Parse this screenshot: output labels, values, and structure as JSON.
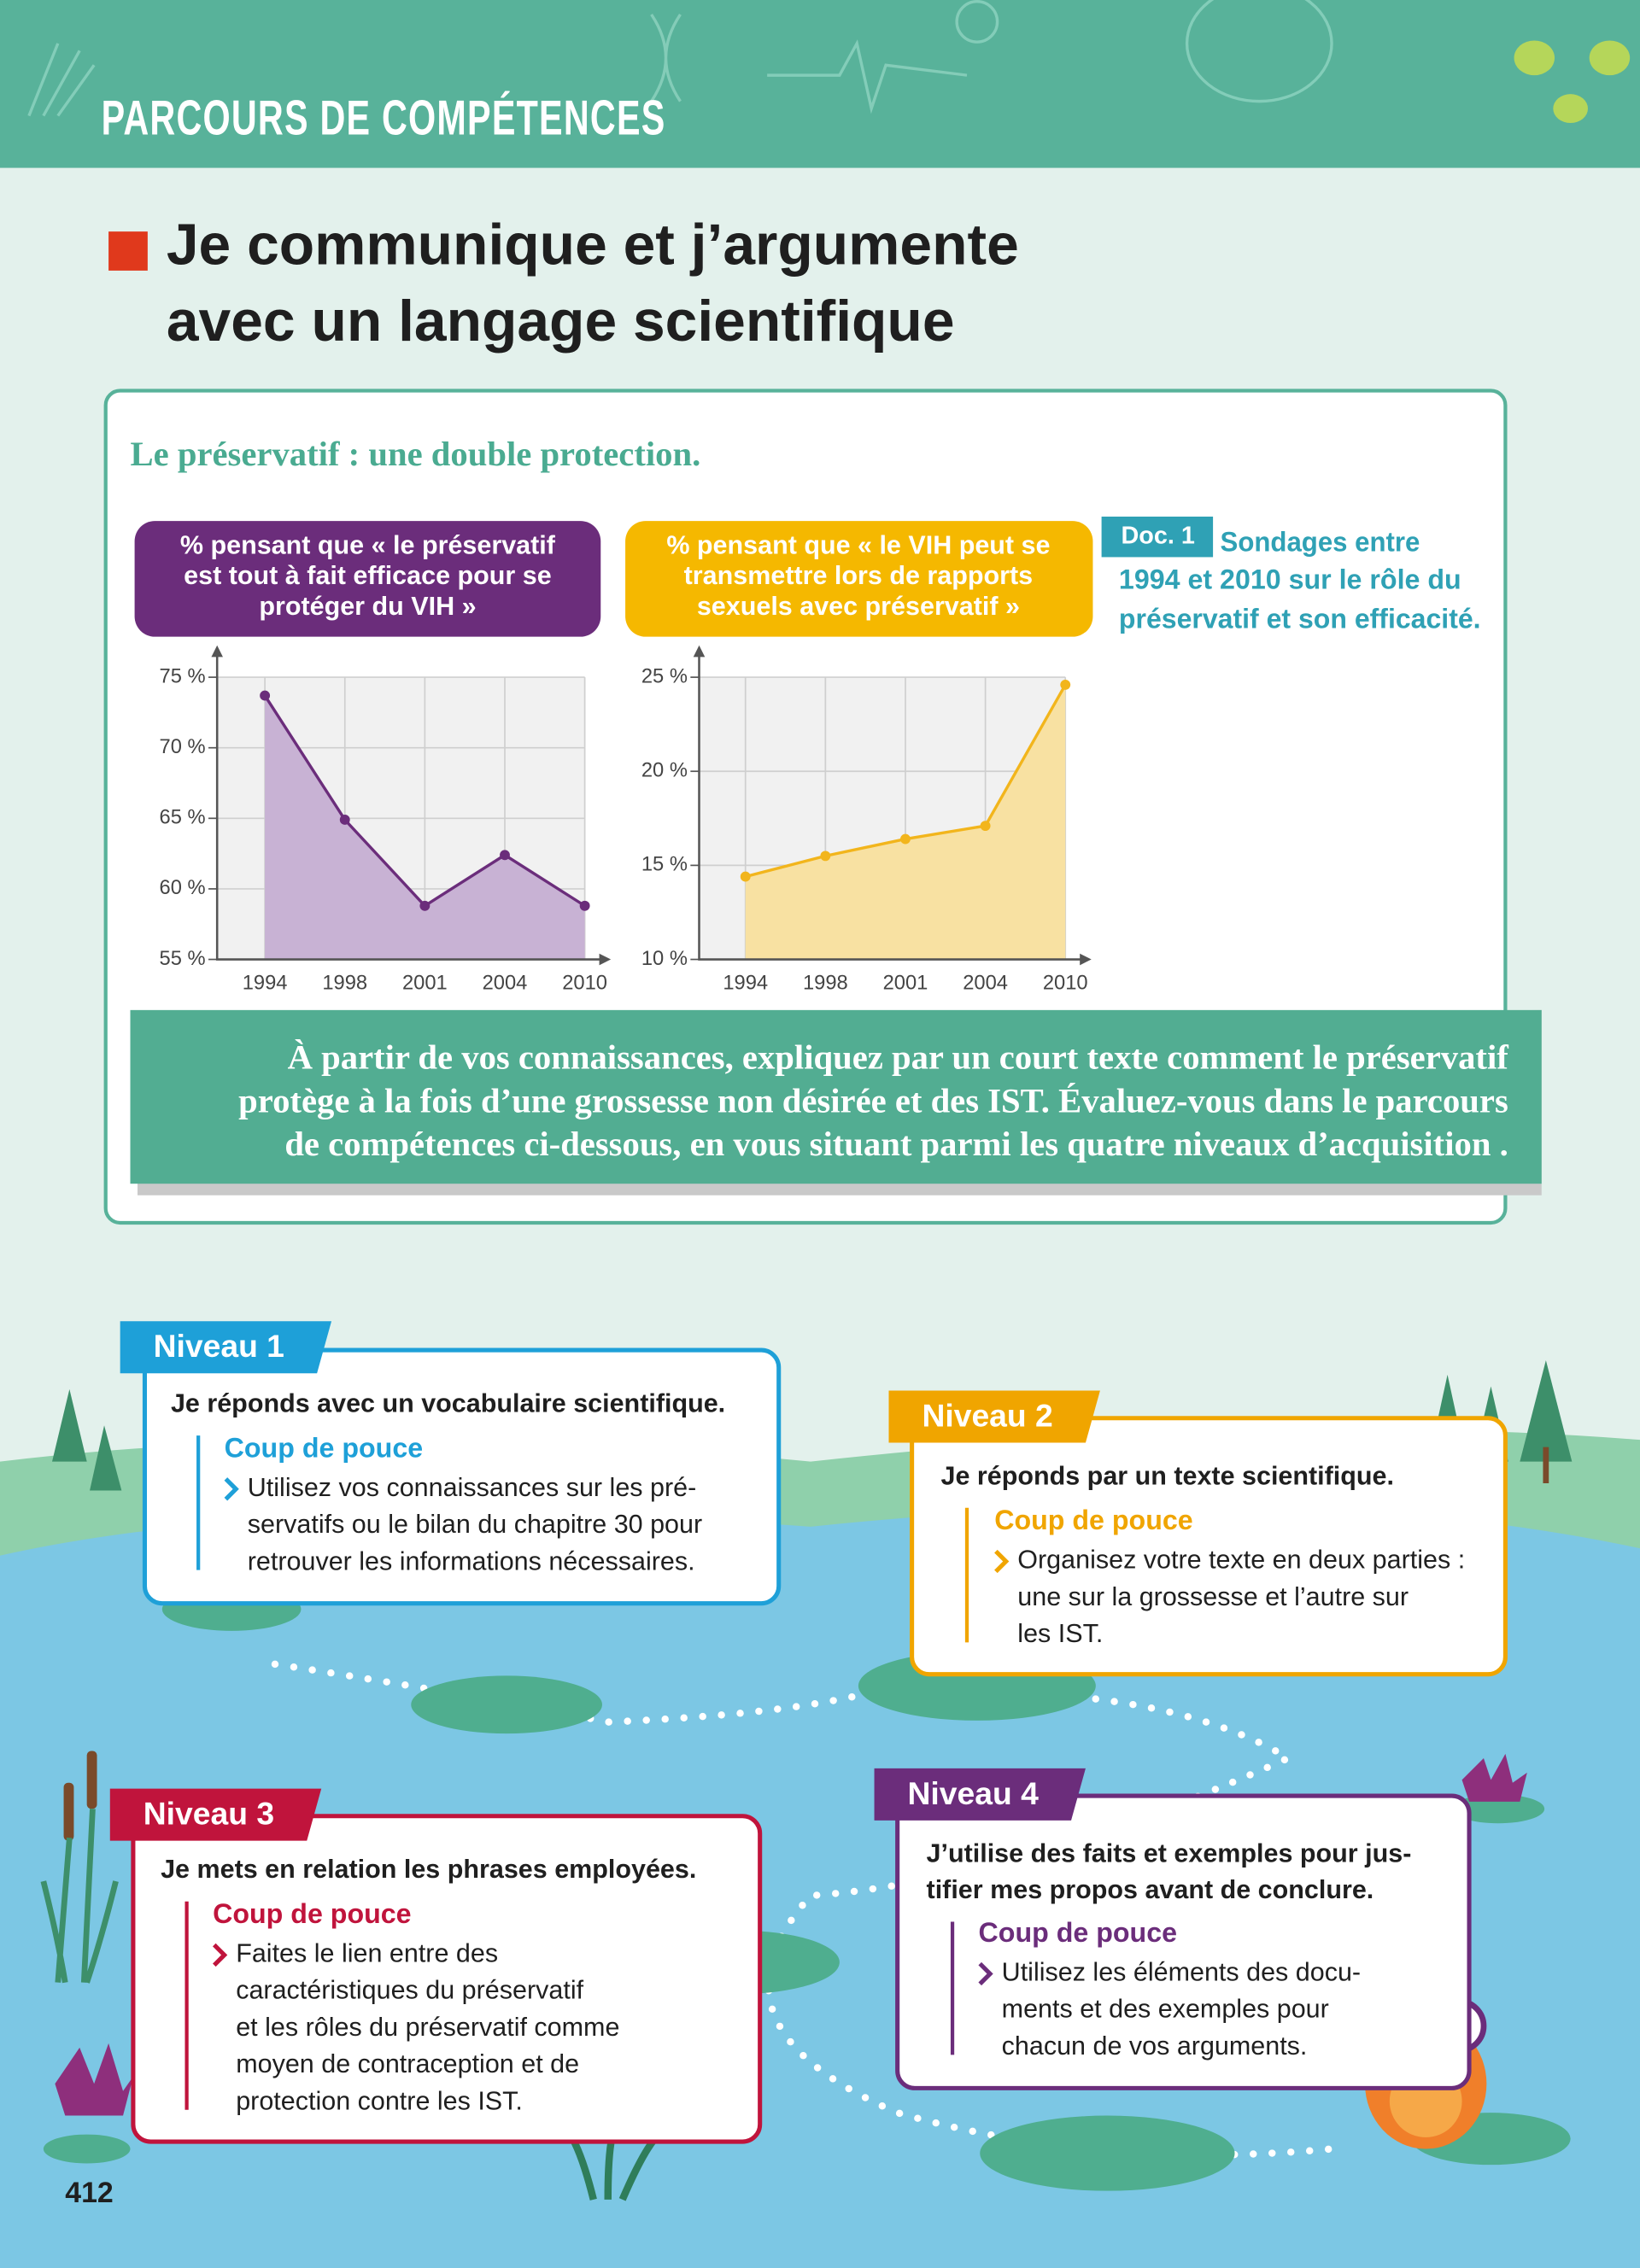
{
  "header": {
    "title": "PARCOURS DE COMPÉTENCES"
  },
  "title_lines": [
    "Je communique et j’argumente",
    "avec un langage scientifique"
  ],
  "doc": {
    "heading": "Le préservatif : une double protection.",
    "label": "Doc. 1",
    "caption_lines": [
      "Sondages entre",
      "1994 et 2010 sur le rôle du",
      "préservatif et son efficacité."
    ],
    "charts": [
      {
        "type": "line",
        "title_lines": [
          "% pensant que « le préservatif",
          "est tout à fait efficace pour se",
          "protéger du VIH »"
        ],
        "categories": [
          "1994",
          "1998",
          "2001",
          "2004",
          "2010"
        ],
        "values": [
          73.7,
          64.9,
          58.8,
          62.4,
          58.8
        ],
        "color": "#6b2d7b",
        "area_color": "#c8b2d4",
        "title_color": "#6b2d7b",
        "ylim": [
          55,
          75
        ],
        "yticks": [
          {
            "value": 55,
            "label": "55 %"
          },
          {
            "value": 60,
            "label": "60 %"
          },
          {
            "value": 65,
            "label": "65 %"
          },
          {
            "value": 70,
            "label": "70 %"
          },
          {
            "value": 75,
            "label": "75 %"
          }
        ],
        "grid": true
      },
      {
        "type": "line",
        "title_lines": [
          "% pensant que « le VIH peut se",
          "transmettre lors de rapports",
          "sexuels avec préservatif »"
        ],
        "categories": [
          "1994",
          "1998",
          "2001",
          "2004",
          "2010"
        ],
        "values": [
          14.4,
          15.5,
          16.4,
          17.1,
          24.6
        ],
        "color": "#f2b51c",
        "area_color": "#f8e1a2",
        "title_color": "#f5b800",
        "ylim": [
          10,
          25
        ],
        "yticks": [
          {
            "value": 10,
            "label": "10 %"
          },
          {
            "value": 15,
            "label": "15 %"
          },
          {
            "value": 20,
            "label": "20 %"
          },
          {
            "value": 25,
            "label": "25 %"
          }
        ],
        "grid": true
      }
    ],
    "instruction_lines": [
      "À partir de vos connaissances, expliquez par un court texte comment le préservatif",
      "protège à la fois d’une grossesse non désirée et des IST. Évaluez-vous dans le parcours",
      "de compétences ci-dessous, en vous situant parmi les quatre niveaux d’acquisition ."
    ]
  },
  "levels": [
    {
      "label": "Niveau 1",
      "statement_lines": [
        "Je réponds avec un vocabulaire scientifique."
      ],
      "hint_title": "Coup de pouce",
      "hint_lines": [
        "Utilisez vos connaissances sur les pré-",
        "servatifs ou le bilan du chapitre 30 pour",
        "retrouver les informations nécessaires."
      ]
    },
    {
      "label": "Niveau 2",
      "statement_lines": [
        "Je réponds par un texte scientifique."
      ],
      "hint_title": "Coup de pouce",
      "hint_lines": [
        "Organisez votre texte en deux parties :",
        "une sur la grossesse et l’autre sur",
        "les IST."
      ]
    },
    {
      "label": "Niveau 3",
      "statement_lines": [
        "Je mets en relation les phrases employées."
      ],
      "hint_title": "Coup de pouce",
      "hint_lines": [
        "Faites le lien entre des",
        "caractéristiques du préservatif",
        "et les rôles du préservatif comme",
        "moyen de contraception et de",
        "protection contre les IST."
      ]
    },
    {
      "label": "Niveau 4",
      "statement_lines": [
        "J’utilise des faits et exemples pour jus-",
        "tifier mes propos avant de conclure."
      ],
      "hint_title": "Coup de pouce",
      "hint_lines": [
        "Utilisez les éléments des docu-",
        "ments et des exemples pour",
        "chacun de vos arguments."
      ]
    }
  ],
  "page_number": "412"
}
